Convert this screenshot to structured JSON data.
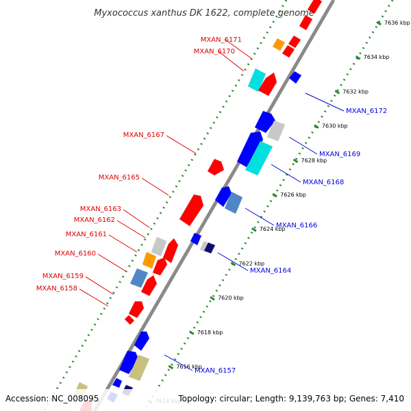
{
  "title": "Myxococcus xanthus DK 1622, complete genome",
  "footer": {
    "accession": "Accession: NC_008095",
    "topology": "Topology: circular; Length: 9,139,763 bp; Genes: 7,410"
  },
  "colors": {
    "backbone": "#8a8a8a",
    "tick": "#2a8a2a",
    "forward_label": "#dd0000",
    "reverse_label": "#0000dd",
    "forward_gene": "#ff0000",
    "reverse_gene": "#0000ff",
    "cyan": "#00e0e0",
    "orange": "#ff9900",
    "steel": "#4f86c6",
    "gray": "#c8c8c8",
    "khaki": "#c8c080",
    "navy": "#101070"
  },
  "scale_ticks": [
    {
      "kbp": 7636,
      "label": "7636 kbp"
    },
    {
      "kbp": 7634,
      "label": "7634 kbp"
    },
    {
      "kbp": 7632,
      "label": "7632 kbp"
    },
    {
      "kbp": 7630,
      "label": "7630 kbp"
    },
    {
      "kbp": 7628,
      "label": "7628 kbp"
    },
    {
      "kbp": 7626,
      "label": "7626 kbp"
    },
    {
      "kbp": 7624,
      "label": "7624 kbp"
    },
    {
      "kbp": 7622,
      "label": "7622 kbp"
    },
    {
      "kbp": 7620,
      "label": "7620 kbp"
    },
    {
      "kbp": 7618,
      "label": "7618 kbp"
    },
    {
      "kbp": 7616,
      "label": "7616 kbp"
    },
    {
      "kbp": 7614,
      "label": "7614 kbp"
    }
  ],
  "gene_labels": [
    {
      "name": "MXAN_6171",
      "strand": "forward"
    },
    {
      "name": "MXAN_6170",
      "strand": "forward"
    },
    {
      "name": "MXAN_6167",
      "strand": "forward"
    },
    {
      "name": "MXAN_6165",
      "strand": "forward"
    },
    {
      "name": "MXAN_6163",
      "strand": "forward"
    },
    {
      "name": "MXAN_6162",
      "strand": "forward"
    },
    {
      "name": "MXAN_6161",
      "strand": "forward"
    },
    {
      "name": "MXAN_6160",
      "strand": "forward"
    },
    {
      "name": "MXAN_6159",
      "strand": "forward"
    },
    {
      "name": "MXAN_6158",
      "strand": "forward"
    },
    {
      "name": "MXAN_6172",
      "strand": "reverse"
    },
    {
      "name": "MXAN_6169",
      "strand": "reverse"
    },
    {
      "name": "MXAN_6168",
      "strand": "reverse"
    },
    {
      "name": "MXAN_6166",
      "strand": "reverse"
    },
    {
      "name": "MXAN_6164",
      "strand": "reverse"
    },
    {
      "name": "MXAN_6157",
      "strand": "reverse"
    }
  ]
}
